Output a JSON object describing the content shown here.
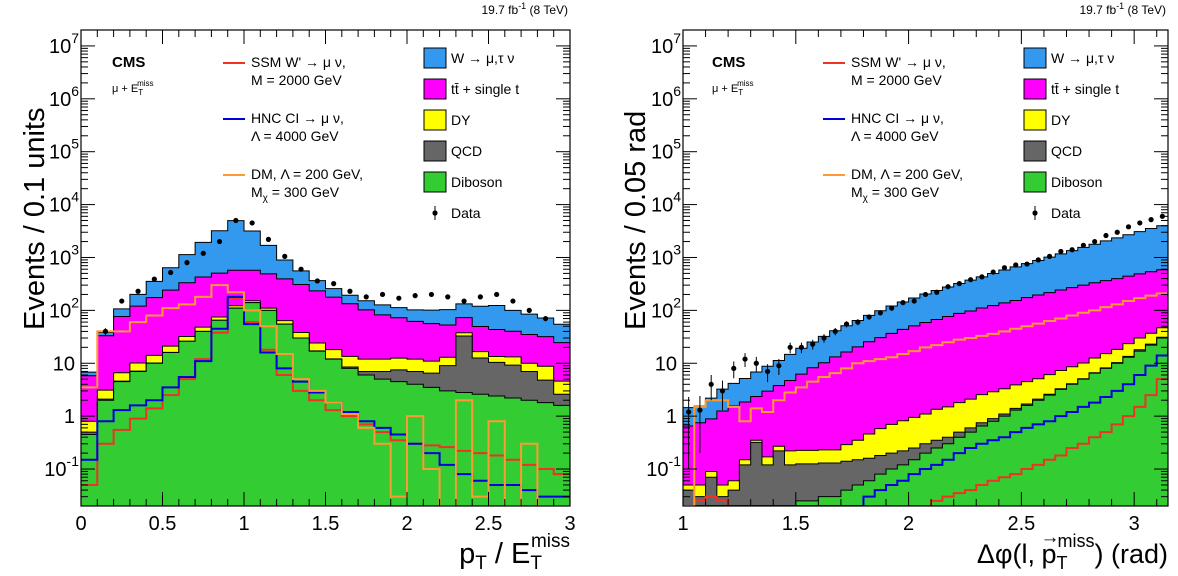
{
  "chart_data": [
    {
      "type": "histogram",
      "lumi_text": "19.7 fb-1 (8 TeV)",
      "lumi": {
        "value": "19.7 fb",
        "sup": "-1",
        "rest": " (8 TeV)"
      },
      "cms_label": "CMS",
      "selection": {
        "base": "μ + E",
        "sub": "T",
        "sup": "miss"
      },
      "xlabel": {
        "a": "p",
        "a_sub": "T",
        "b": " / E",
        "b_sub": "T",
        "b_sup": "miss"
      },
      "ylabel": "Events / 0.1 units",
      "xlim": [
        0,
        3
      ],
      "ylim": [
        0.02,
        20000000
      ],
      "yscale": "log",
      "xticks": [
        "0",
        "0.5",
        "1",
        "1.5",
        "2",
        "2.5",
        "3"
      ],
      "yticks": [
        "10-1",
        "1",
        "10",
        "102",
        "103",
        "104",
        "105",
        "106",
        "107"
      ],
      "bin_edges_start": 0,
      "bin_width": 0.1,
      "stack": [
        {
          "name": "Diboson",
          "color": "#33cc33",
          "values": [
            0.45,
            2,
            4.5,
            7,
            10,
            16,
            26,
            40,
            65,
            110,
            140,
            100,
            55,
            30,
            17,
            12,
            8,
            6,
            5,
            4.5,
            4,
            3.5,
            3,
            2.8,
            2.6,
            2.4,
            2.2,
            2,
            1.8,
            1.6
          ]
        },
        {
          "name": "QCD",
          "color": "#666666",
          "values": [
            0.05,
            0.1,
            0.1,
            0.1,
            0.1,
            0.1,
            0.1,
            0.1,
            0.1,
            0.1,
            0.1,
            0.1,
            0.1,
            0.1,
            0.1,
            0.1,
            0.5,
            1,
            2,
            3,
            3,
            3,
            6,
            30,
            10,
            8,
            7,
            5,
            3,
            1
          ]
        },
        {
          "name": "DY",
          "color": "#ffff00",
          "values": [
            0.3,
            1,
            2,
            3,
            4,
            5,
            6,
            8,
            10,
            12,
            12,
            10,
            9,
            8,
            7,
            6,
            5,
            5,
            5,
            5,
            5,
            4.5,
            4,
            5,
            4,
            3,
            4,
            3,
            4,
            2
          ]
        },
        {
          "name": "tt̄ + single t",
          "color": "#ff00ff",
          "values": [
            5,
            30,
            70,
            110,
            160,
            220,
            300,
            380,
            430,
            450,
            420,
            380,
            330,
            270,
            210,
            160,
            120,
            90,
            70,
            60,
            50,
            45,
            40,
            35,
            33,
            30,
            27,
            25,
            23,
            20
          ]
        },
        {
          "name": "W → μ,τ ν",
          "color": "#3399ee",
          "values": [
            1,
            5,
            30,
            80,
            180,
            400,
            800,
            1500,
            2700,
            4400,
            2600,
            1200,
            500,
            250,
            130,
            80,
            60,
            50,
            45,
            40,
            40,
            45,
            50,
            60,
            70,
            80,
            60,
            50,
            40,
            30
          ]
        }
      ],
      "data": {
        "name": "Data",
        "x": [
          0.15,
          0.25,
          0.35,
          0.45,
          0.55,
          0.65,
          0.75,
          0.85,
          0.95,
          1.05,
          1.15,
          1.25,
          1.35,
          1.45,
          1.55,
          1.65,
          1.75,
          1.85,
          1.95,
          2.05,
          2.15,
          2.25,
          2.35,
          2.45,
          2.55,
          2.65,
          2.75,
          2.85
        ],
        "y": [
          40,
          150,
          230,
          390,
          520,
          800,
          1200,
          2000,
          5000,
          4500,
          2200,
          1050,
          600,
          360,
          320,
          230,
          180,
          200,
          170,
          190,
          200,
          180,
          150,
          180,
          200,
          150,
          100,
          70
        ],
        "yerr": [
          6,
          12,
          15,
          20,
          23,
          28,
          35,
          45,
          70,
          67,
          47,
          32,
          25,
          19,
          18,
          15,
          13,
          14,
          13,
          14,
          14,
          13,
          12,
          13,
          14,
          12,
          10,
          8
        ]
      },
      "signals": [
        {
          "name": "SSM W' → μ ν,",
          "label2": "M = 2000 GeV",
          "color": "#ee3322",
          "values": [
            0.05,
            0.3,
            0.55,
            0.9,
            1.4,
            2.5,
            5,
            12,
            38,
            170,
            60,
            18,
            6,
            3,
            2,
            1.3,
            1,
            0.7,
            0.5,
            0.35,
            0.3,
            0.28,
            0.26,
            0.22,
            0.2,
            0.18,
            0.15,
            0.12,
            0.1,
            0.08
          ]
        },
        {
          "name": "HNC CI → μ ν,",
          "label2": "Λ = 4000 GeV",
          "color": "#0000dd",
          "values": [
            0.15,
            0.8,
            1.3,
            1.6,
            2,
            3.5,
            5.5,
            11,
            45,
            180,
            55,
            16,
            8,
            4.5,
            2.8,
            1.8,
            1.2,
            0.8,
            0.6,
            0.45,
            0.3,
            0.2,
            0.12,
            0.08,
            0.06,
            0.05,
            0.05,
            0.04,
            0.03,
            0.03
          ]
        },
        {
          "name": "DM, Λ = 200 GeV,",
          "label2": "M",
          "label2_sub": "χ",
          "label2_rest": " = 300 GeV",
          "color": "#ff9933",
          "values": [
            3.5,
            40,
            40,
            60,
            80,
            110,
            130,
            180,
            300,
            220,
            100,
            50,
            15,
            5,
            3,
            1.8,
            1.1,
            0.6,
            0.3,
            0.03,
            1,
            0.1,
            0.02,
            2,
            0.03,
            0.8,
            0.02,
            0.3,
            0.02,
            0.02
          ]
        }
      ],
      "legend": {
        "placement": "top",
        "data_label": "Data"
      }
    },
    {
      "type": "histogram",
      "lumi_text": "19.7 fb-1 (8 TeV)",
      "lumi": {
        "value": "19.7 fb",
        "sup": "-1",
        "rest": " (8 TeV)"
      },
      "cms_label": "CMS",
      "selection": {
        "base": "μ + E",
        "sub": "T",
        "sup": "miss"
      },
      "xlabel": {
        "a": "Δφ(l, ",
        "vec": "→",
        "b": "p",
        "b_sub": "T",
        "b_sup": "miss",
        "c": ")  (rad)"
      },
      "ylabel": "Events / 0.05 rad",
      "xlim": [
        1,
        3.15
      ],
      "ylim": [
        0.02,
        20000000
      ],
      "yscale": "log",
      "xticks": [
        "1",
        "1.5",
        "2",
        "2.5",
        "3"
      ],
      "yticks": [
        "10-1",
        "1",
        "10",
        "102",
        "103",
        "104",
        "105",
        "106",
        "107"
      ],
      "bin_edges_start": 1,
      "bin_width": 0.05,
      "stack": [
        {
          "name": "Diboson",
          "color": "#33cc33",
          "values": [
            0.02,
            0.02,
            0.02,
            0.02,
            0.02,
            0.02,
            0.02,
            0.02,
            0.02,
            0.02,
            0.025,
            0.025,
            0.03,
            0.03,
            0.04,
            0.05,
            0.06,
            0.08,
            0.1,
            0.12,
            0.15,
            0.2,
            0.25,
            0.3,
            0.4,
            0.5,
            0.65,
            0.8,
            1,
            1.3,
            1.6,
            2,
            2.5,
            3.2,
            4,
            5,
            6.5,
            8,
            10,
            13,
            17,
            22,
            30,
            45,
            75,
            160
          ]
        },
        {
          "name": "QCD",
          "color": "#666666",
          "values": [
            0.02,
            0.01,
            0.05,
            0.01,
            0.02,
            0.1,
            0.3,
            0.1,
            0.2,
            0.1,
            0.1,
            0.1,
            0.1,
            0.1,
            0.1,
            0.1,
            0.1,
            0.1,
            0.1,
            0.1,
            0.1,
            0.1,
            0.1,
            0.1,
            0.1,
            0.1,
            0.1,
            0.1,
            0.1,
            0.1,
            0.1,
            0.1,
            0.1,
            0.1,
            0.1,
            0.1,
            0.1,
            0.2,
            0.3,
            0.5,
            1,
            1,
            1,
            1,
            1,
            1
          ]
        },
        {
          "name": "DY",
          "color": "#ffff00",
          "values": [
            0.01,
            0.02,
            0.02,
            0.02,
            0.02,
            0.03,
            0.03,
            0.05,
            0.05,
            0.1,
            0.1,
            0.1,
            0.1,
            0.1,
            0.15,
            0.2,
            0.3,
            0.4,
            0.5,
            0.6,
            0.7,
            0.8,
            1,
            1.1,
            1.3,
            1.5,
            1.8,
            2,
            2.2,
            2.5,
            2.8,
            3,
            3.5,
            4,
            4.5,
            5,
            6,
            7,
            8,
            10,
            12,
            14,
            16,
            20,
            25,
            30
          ]
        },
        {
          "name": "tt̄ + single t",
          "color": "#ff00ff",
          "values": [
            0.6,
            0.7,
            0.8,
            1.2,
            1.5,
            1.7,
            2,
            2.8,
            3.5,
            4.5,
            6,
            8,
            10,
            13,
            16,
            20,
            25,
            30,
            36,
            43,
            50,
            58,
            66,
            75,
            86,
            95,
            108,
            120,
            135,
            150,
            170,
            190,
            210,
            235,
            260,
            290,
            320,
            350,
            380,
            420,
            460,
            500,
            540,
            580,
            620,
            660
          ]
        },
        {
          "name": "W → μ,τ ν",
          "color": "#3399ee",
          "values": [
            0.8,
            0.8,
            1.3,
            2,
            2.6,
            3.3,
            4.5,
            5.8,
            7.5,
            10,
            13,
            17,
            22,
            28,
            35,
            44,
            55,
            68,
            84,
            100,
            120,
            145,
            170,
            200,
            235,
            275,
            320,
            375,
            440,
            510,
            590,
            680,
            800,
            930,
            1080,
            1250,
            1450,
            1700,
            1950,
            2250,
            2600,
            3000,
            3400,
            3900,
            4400,
            5000
          ]
        }
      ],
      "data": {
        "name": "Data",
        "x": [
          1.025,
          1.075,
          1.125,
          1.175,
          1.225,
          1.275,
          1.325,
          1.375,
          1.425,
          1.475,
          1.525,
          1.575,
          1.625,
          1.675,
          1.725,
          1.775,
          1.825,
          1.875,
          1.925,
          1.975,
          2.025,
          2.075,
          2.125,
          2.175,
          2.225,
          2.275,
          2.325,
          2.375,
          2.425,
          2.475,
          2.525,
          2.575,
          2.625,
          2.675,
          2.725,
          2.775,
          2.825,
          2.875,
          2.925,
          2.975,
          3.025,
          3.075,
          3.125
        ],
        "y": [
          1.2,
          1.3,
          4,
          3,
          8,
          12,
          10,
          7,
          9,
          20,
          20,
          23,
          30,
          40,
          55,
          60,
          75,
          90,
          110,
          140,
          150,
          200,
          220,
          280,
          320,
          380,
          430,
          530,
          640,
          720,
          750,
          900,
          1050,
          1300,
          1400,
          1700,
          2000,
          2600,
          3000,
          3800,
          4500,
          5200,
          6000
        ],
        "yerr": [
          1.1,
          1.1,
          2,
          1.7,
          2.8,
          3.5,
          3.2,
          2.6,
          3,
          4.5,
          4.5,
          4.8,
          5.5,
          6.3,
          7.4,
          7.7,
          8.7,
          9.5,
          10.5,
          11.8,
          12.2,
          14.1,
          14.8,
          16.7,
          17.9,
          19.5,
          20.7,
          23,
          25.3,
          26.8,
          27.4,
          30,
          32.4,
          36,
          37.4,
          41.2,
          44.7,
          51,
          54.8,
          61.6,
          67,
          72,
          77.5
        ]
      },
      "signals": [
        {
          "name": "SSM W' → μ ν,",
          "label2": "M = 2000 GeV",
          "color": "#ee3322",
          "values": [
            0.02,
            0.025,
            0.03,
            0.025,
            0.02,
            0.02,
            0.02,
            0.02,
            0.02,
            0.02,
            0.02,
            0.02,
            0.02,
            0.02,
            0.02,
            0.02,
            0.02,
            0.02,
            0.02,
            0.02,
            0.02,
            0.02,
            0.025,
            0.03,
            0.035,
            0.04,
            0.05,
            0.06,
            0.07,
            0.08,
            0.1,
            0.12,
            0.15,
            0.18,
            0.25,
            0.3,
            0.4,
            0.5,
            0.7,
            1,
            1.5,
            2.5,
            5,
            12,
            40,
            90
          ]
        },
        {
          "name": "HNC CI → μ ν,",
          "label2": "Λ = 4000 GeV",
          "color": "#0000dd",
          "values": [
            0.02,
            0.02,
            0.02,
            0.02,
            0.02,
            0.02,
            0.02,
            0.02,
            0.02,
            0.02,
            0.02,
            0.02,
            0.02,
            0.02,
            0.02,
            0.02,
            0.03,
            0.04,
            0.05,
            0.06,
            0.08,
            0.1,
            0.12,
            0.15,
            0.2,
            0.25,
            0.3,
            0.35,
            0.4,
            0.5,
            0.6,
            0.7,
            0.8,
            1,
            1.2,
            1.5,
            1.8,
            2.3,
            3,
            4,
            6,
            9,
            14,
            25,
            45,
            100
          ]
        },
        {
          "name": "DM, Λ = 200 GeV,",
          "label2": "M",
          "label2_sub": "χ",
          "label2_rest": " = 300 GeV",
          "color": "#ff9933",
          "values": [
            0.02,
            1.5,
            2,
            2,
            1.5,
            0.8,
            1.4,
            1.2,
            2,
            2.8,
            3.5,
            4.5,
            5.5,
            6.5,
            8,
            10,
            11,
            12,
            13,
            15,
            17,
            20,
            22,
            25,
            28,
            30,
            33,
            36,
            40,
            45,
            50,
            56,
            63,
            70,
            80,
            90,
            100,
            115,
            130,
            150,
            170,
            190,
            210,
            240,
            270,
            300
          ]
        }
      ],
      "legend": {
        "placement": "top",
        "data_label": "Data"
      }
    }
  ]
}
